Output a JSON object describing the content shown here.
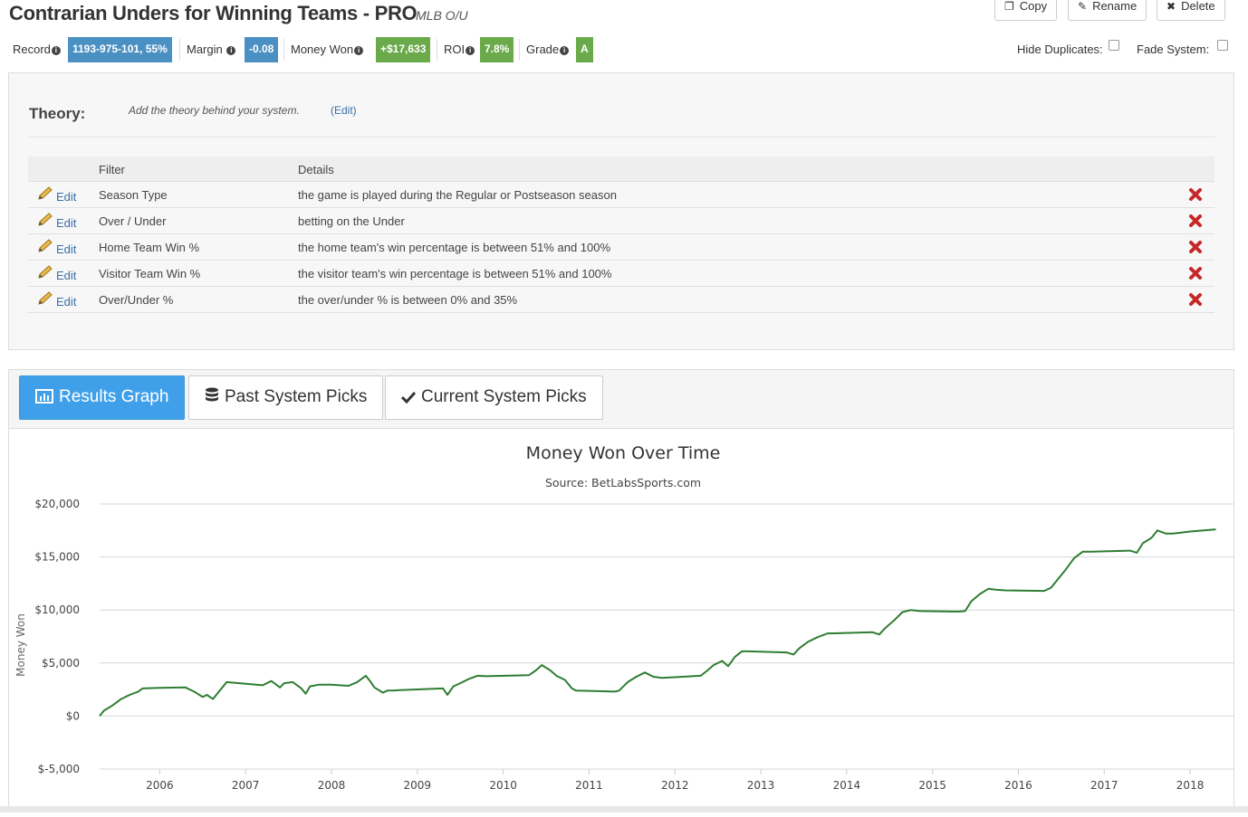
{
  "header": {
    "title": "Contrarian Unders for Winning Teams - PRO",
    "subtitle": "MLB O/U",
    "buttons": {
      "copy": "Copy",
      "rename": "Rename",
      "delete": "Delete"
    }
  },
  "stats": {
    "record_label": "Record",
    "record_value": "1193-975-101, 55%",
    "margin_label": "Margin",
    "margin_value": "-0.08",
    "money_label": "Money Won",
    "money_value": "+$17,633",
    "roi_label": "ROI",
    "roi_value": "7.8%",
    "grade_label": "Grade",
    "grade_value": "A",
    "hide_duplicates": "Hide Duplicates:",
    "fade_system": "Fade System:",
    "colors": {
      "blue_badge": "#4a90c2",
      "green_badge": "#6aaa4a"
    }
  },
  "theory": {
    "title": "Theory:",
    "text": "Add the theory behind your system.",
    "edit": "(Edit)"
  },
  "filters": {
    "col_filter": "Filter",
    "col_details": "Details",
    "edit_label": "Edit",
    "rows": [
      {
        "filter": "Season Type",
        "details": "the game is played during the Regular or Postseason season"
      },
      {
        "filter": "Over / Under",
        "details": "betting on the Under"
      },
      {
        "filter": "Home Team Win %",
        "details": "the home team's win percentage is between 51% and 100%"
      },
      {
        "filter": "Visitor Team Win %",
        "details": "the visitor team's win percentage is between 51% and 100%"
      },
      {
        "filter": "Over/Under %",
        "details": "the over/under % is between 0% and 35%"
      }
    ]
  },
  "tabs": {
    "results_graph": "Results Graph",
    "past_picks": "Past System Picks",
    "current_picks": "Current System Picks",
    "active_color": "#3fa0e9"
  },
  "chart_data": {
    "type": "line",
    "title": "Money Won Over Time",
    "subtitle": "Source: BetLabsSports.com",
    "ylabel": "Money Won",
    "xlabel": "",
    "ylim": [
      -5000,
      20000
    ],
    "yticks": [
      -5000,
      0,
      5000,
      10000,
      15000,
      20000
    ],
    "ytick_labels": [
      "$-5,000",
      "$0",
      "$5,000",
      "$10,000",
      "$15,000",
      "$20,000"
    ],
    "xticks": [
      "2006",
      "2007",
      "2008",
      "2009",
      "2010",
      "2011",
      "2012",
      "2013",
      "2014",
      "2015",
      "2016",
      "2017",
      "2018"
    ],
    "xlim": [
      2005.3,
      2018.4
    ],
    "grid": true,
    "line_color": "#2e7d32",
    "series": [
      {
        "x": [
          2005.3,
          2005.35,
          2005.45,
          2005.55,
          2005.65,
          2005.75,
          2005.8,
          2006.0,
          2006.3,
          2006.4,
          2006.5,
          2006.55,
          2006.62,
          2006.7,
          2006.78,
          2006.85,
          2007.2,
          2007.3,
          2007.4,
          2007.45,
          2007.55,
          2007.65,
          2007.7,
          2007.75,
          2007.85,
          2008.0,
          2008.2,
          2008.3,
          2008.4,
          2008.45,
          2008.5,
          2008.6,
          2008.65,
          2008.72,
          2008.8,
          2009.3,
          2009.35,
          2009.42,
          2009.5,
          2009.6,
          2009.7,
          2009.8,
          2010.3,
          2010.38,
          2010.45,
          2010.55,
          2010.62,
          2010.72,
          2010.8,
          2010.85,
          2011.3,
          2011.35,
          2011.45,
          2011.55,
          2011.65,
          2011.75,
          2011.85,
          2012.3,
          2012.38,
          2012.45,
          2012.55,
          2012.62,
          2012.7,
          2012.78,
          2012.85,
          2013.3,
          2013.38,
          2013.45,
          2013.55,
          2013.65,
          2013.78,
          2013.85,
          2014.3,
          2014.38,
          2014.45,
          2014.55,
          2014.65,
          2014.75,
          2014.85,
          2015.3,
          2015.38,
          2015.45,
          2015.55,
          2015.65,
          2015.75,
          2015.85,
          2016.3,
          2016.38,
          2016.45,
          2016.55,
          2016.65,
          2016.75,
          2016.85,
          2017.3,
          2017.38,
          2017.45,
          2017.55,
          2017.62,
          2017.72,
          2017.8,
          2018.0,
          2018.3
        ],
        "y": [
          0,
          500,
          1000,
          1600,
          2000,
          2300,
          2600,
          2650,
          2700,
          2300,
          1800,
          2000,
          1600,
          2400,
          3200,
          3150,
          2900,
          3300,
          2700,
          3100,
          3200,
          2600,
          2100,
          2800,
          2950,
          2950,
          2850,
          3200,
          3800,
          3300,
          2700,
          2200,
          2400,
          2400,
          2450,
          2600,
          2000,
          2800,
          3100,
          3500,
          3800,
          3750,
          3850,
          4300,
          4800,
          4300,
          3800,
          3400,
          2600,
          2400,
          2300,
          2400,
          3200,
          3700,
          4100,
          3700,
          3600,
          3800,
          4300,
          4800,
          5200,
          4700,
          5600,
          6100,
          6100,
          6000,
          5800,
          6400,
          7000,
          7400,
          7800,
          7800,
          7900,
          7700,
          8300,
          9000,
          9800,
          10000,
          9900,
          9850,
          9900,
          10800,
          11500,
          12000,
          11900,
          11850,
          11800,
          12100,
          12800,
          13800,
          14900,
          15500,
          15500,
          15600,
          15400,
          16300,
          16800,
          17500,
          17200,
          17200,
          17400,
          17600
        ]
      }
    ]
  }
}
